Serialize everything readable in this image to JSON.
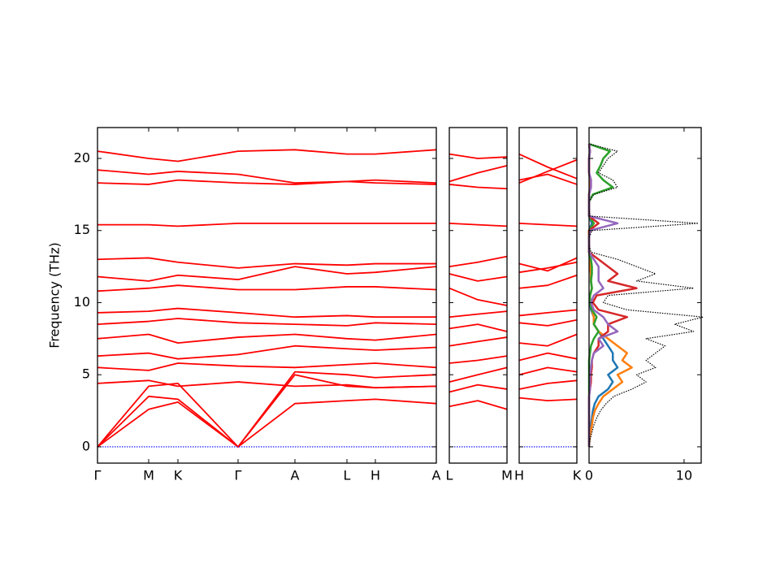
{
  "chart_data": [
    {
      "type": "line",
      "ylabel": "Frequency (THz)",
      "x": [
        0,
        63,
        99,
        173,
        243,
        307,
        342,
        417
      ],
      "xlim": [
        0,
        417
      ],
      "xticks": [
        {
          "value": 0,
          "label": "Γ"
        },
        {
          "value": 63,
          "label": "M"
        },
        {
          "value": 99,
          "label": "K"
        },
        {
          "value": 173,
          "label": "Γ"
        },
        {
          "value": 243,
          "label": "A"
        },
        {
          "value": 307,
          "label": "L"
        },
        {
          "value": 342,
          "label": "H"
        },
        {
          "value": 417,
          "label": "A"
        }
      ],
      "ylim": [
        -1.13,
        22.14
      ],
      "yticks": [
        0,
        5,
        10,
        15,
        20
      ],
      "series": [
        {
          "color": "#ff0000",
          "values": [
            0,
            2.6,
            3.1,
            0,
            3,
            3.2,
            3.3,
            3
          ]
        },
        {
          "color": "#ff0000",
          "values": [
            0,
            3.5,
            3.3,
            0,
            5,
            4.2,
            4.1,
            4.2
          ]
        },
        {
          "color": "#ff0000",
          "values": [
            0,
            4.2,
            4.4,
            0,
            5.2,
            5.0,
            4.8,
            5
          ]
        },
        {
          "color": "#ff0000",
          "values": [
            4.4,
            4.6,
            4.2,
            4.5,
            4.2,
            4.3,
            4.1,
            4.2
          ]
        },
        {
          "color": "#ff0000",
          "values": [
            5.5,
            5.3,
            5.8,
            5.6,
            5.5,
            5.7,
            5.8,
            5.5
          ]
        },
        {
          "color": "#ff0000",
          "values": [
            6.3,
            6.5,
            6.1,
            6.4,
            7,
            6.8,
            6.7,
            6.9
          ]
        },
        {
          "color": "#ff0000",
          "values": [
            7.5,
            7.8,
            7.2,
            7.6,
            7.8,
            7.5,
            7.4,
            7.8
          ]
        },
        {
          "color": "#ff0000",
          "values": [
            8.5,
            8.7,
            8.9,
            8.6,
            8.5,
            8.4,
            8.6,
            8.5
          ]
        },
        {
          "color": "#ff0000",
          "values": [
            9.3,
            9.4,
            9.6,
            9.3,
            9.0,
            9.1,
            9.0,
            9.0
          ]
        },
        {
          "color": "#ff0000",
          "values": [
            10.8,
            11.0,
            11.2,
            10.9,
            10.9,
            11.1,
            11.1,
            10.9
          ]
        },
        {
          "color": "#ff0000",
          "values": [
            11.8,
            11.5,
            11.9,
            11.6,
            12.5,
            12.0,
            12.1,
            12.5
          ]
        },
        {
          "color": "#ff0000",
          "values": [
            13.0,
            13.1,
            12.8,
            12.4,
            12.7,
            12.6,
            12.7,
            12.7
          ]
        },
        {
          "color": "#ff0000",
          "values": [
            15.4,
            15.4,
            15.3,
            15.5,
            15.5,
            15.5,
            15.5,
            15.5
          ]
        },
        {
          "color": "#ff0000",
          "values": [
            18.3,
            18.2,
            18.5,
            18.3,
            18.2,
            18.4,
            18.3,
            18.2
          ]
        },
        {
          "color": "#ff0000",
          "values": [
            19.2,
            18.9,
            19.1,
            18.9,
            18.3,
            18.4,
            18.5,
            18.3
          ]
        },
        {
          "color": "#ff0000",
          "values": [
            20.5,
            20.0,
            19.8,
            20.5,
            20.6,
            20.3,
            20.3,
            20.6
          ]
        },
        {
          "color": "#0000ff",
          "linestyle": "dotted",
          "values": [
            0,
            0,
            0,
            0,
            0,
            0,
            0,
            0
          ]
        }
      ]
    },
    {
      "type": "line",
      "x": [
        0,
        35,
        71
      ],
      "xlim": [
        0,
        71
      ],
      "xticks": [
        {
          "value": 0,
          "label": "L"
        },
        {
          "value": 71,
          "label": "M"
        }
      ],
      "ylim": [
        -1.13,
        22.14
      ],
      "yticks": [
        0,
        5,
        10,
        15,
        20
      ],
      "series": [
        {
          "color": "#ff0000",
          "values": [
            2.8,
            3.2,
            2.6
          ]
        },
        {
          "color": "#ff0000",
          "values": [
            3.8,
            4.3,
            4.0
          ]
        },
        {
          "color": "#ff0000",
          "values": [
            4.5,
            5.0,
            5.5
          ]
        },
        {
          "color": "#ff0000",
          "values": [
            5.8,
            6.0,
            6.3
          ]
        },
        {
          "color": "#ff0000",
          "values": [
            7.0,
            7.3,
            7.6
          ]
        },
        {
          "color": "#ff0000",
          "values": [
            8.2,
            8.5,
            8.0
          ]
        },
        {
          "color": "#ff0000",
          "values": [
            9.0,
            9.2,
            9.4
          ]
        },
        {
          "color": "#ff0000",
          "values": [
            11.0,
            10.2,
            9.8
          ]
        },
        {
          "color": "#ff0000",
          "values": [
            12.0,
            11.5,
            11.8
          ]
        },
        {
          "color": "#ff0000",
          "values": [
            12.5,
            12.8,
            13.2
          ]
        },
        {
          "color": "#ff0000",
          "values": [
            15.5,
            15.4,
            15.3
          ]
        },
        {
          "color": "#ff0000",
          "values": [
            18.2,
            18.0,
            17.9
          ]
        },
        {
          "color": "#ff0000",
          "values": [
            18.4,
            19.0,
            19.5
          ]
        },
        {
          "color": "#ff0000",
          "values": [
            20.3,
            20.0,
            20.1
          ]
        },
        {
          "color": "#0000ff",
          "linestyle": "dotted",
          "values": [
            0,
            0,
            0
          ]
        }
      ]
    },
    {
      "type": "line",
      "x": [
        0,
        35,
        71
      ],
      "xlim": [
        0,
        71
      ],
      "xticks": [
        {
          "value": 0,
          "label": "H"
        },
        {
          "value": 71,
          "label": "K"
        }
      ],
      "ylim": [
        -1.13,
        22.14
      ],
      "yticks": [
        0,
        5,
        10,
        15,
        20
      ],
      "series": [
        {
          "color": "#ff0000",
          "values": [
            3.4,
            3.2,
            3.3
          ]
        },
        {
          "color": "#ff0000",
          "values": [
            4.0,
            4.4,
            4.6
          ]
        },
        {
          "color": "#ff0000",
          "values": [
            5.0,
            5.5,
            5.2
          ]
        },
        {
          "color": "#ff0000",
          "values": [
            6.0,
            6.5,
            6.1
          ]
        },
        {
          "color": "#ff0000",
          "values": [
            7.2,
            7.0,
            7.8
          ]
        },
        {
          "color": "#ff0000",
          "values": [
            8.6,
            8.4,
            8.8
          ]
        },
        {
          "color": "#ff0000",
          "values": [
            9.1,
            9.3,
            9.5
          ]
        },
        {
          "color": "#ff0000",
          "values": [
            11.0,
            11.2,
            11.9
          ]
        },
        {
          "color": "#ff0000",
          "values": [
            12.1,
            12.4,
            12.8
          ]
        },
        {
          "color": "#ff0000",
          "values": [
            12.7,
            12.2,
            13.1
          ]
        },
        {
          "color": "#ff0000",
          "values": [
            15.5,
            15.4,
            15.3
          ]
        },
        {
          "color": "#ff0000",
          "values": [
            18.3,
            19.1,
            19.9
          ]
        },
        {
          "color": "#ff0000",
          "values": [
            18.5,
            18.9,
            18.2
          ]
        },
        {
          "color": "#ff0000",
          "values": [
            20.3,
            19.4,
            18.6
          ]
        },
        {
          "color": "#0000ff",
          "linestyle": "dotted",
          "values": [
            0,
            0,
            0
          ]
        }
      ]
    },
    {
      "type": "line",
      "orientation": "horizontal",
      "y": [
        0,
        0.5,
        1,
        1.5,
        2,
        2.5,
        3,
        3.5,
        4,
        4.5,
        5,
        5.5,
        6,
        6.5,
        7,
        7.5,
        8,
        8.5,
        9,
        9.5,
        10,
        10.5,
        11,
        11.5,
        12,
        12.5,
        13,
        13.5,
        14,
        14.5,
        15,
        15.5,
        16,
        16.5,
        17,
        17.5,
        18,
        18.5,
        19,
        19.5,
        20,
        20.5,
        21
      ],
      "xlim": [
        0,
        11.8
      ],
      "xticks": [
        0,
        10
      ],
      "ylim": [
        -1.13,
        22.14
      ],
      "yticks": [
        0,
        5,
        10,
        15,
        20
      ],
      "series": [
        {
          "color": "#1f77b4",
          "values": [
            0,
            0.05,
            0.1,
            0.2,
            0.3,
            0.4,
            0.6,
            1,
            2,
            2.5,
            2,
            3,
            2.5,
            2.5,
            2,
            1.5,
            1,
            0.5,
            0.5,
            0.2,
            0.1,
            0.1,
            0.3,
            0.2,
            0.2,
            0.1,
            0.1,
            0,
            0,
            0,
            0,
            0.3,
            0,
            0,
            0,
            0,
            0.1,
            0.1,
            0,
            0,
            0,
            0.1,
            0
          ]
        },
        {
          "color": "#ff7f0e",
          "values": [
            0,
            0.05,
            0.15,
            0.3,
            0.4,
            0.6,
            1,
            1.5,
            2.5,
            3.5,
            3,
            4.5,
            3.5,
            4,
            3,
            2,
            1,
            0.5,
            0.5,
            0.3,
            0.1,
            0.1,
            0.3,
            0.2,
            0.2,
            0.1,
            0.1,
            0,
            0,
            0,
            0,
            0.5,
            0,
            0,
            0,
            0,
            0.1,
            0.1,
            0,
            0,
            0,
            0.1,
            0
          ]
        },
        {
          "color": "#2ca02c",
          "values": [
            0,
            0,
            0,
            0,
            0,
            0,
            0,
            0,
            0,
            0,
            0,
            0,
            0,
            0.1,
            0.2,
            0.5,
            1,
            0.5,
            0.8,
            0.3,
            0.1,
            0.1,
            0.3,
            0.2,
            0.3,
            0.3,
            0.2,
            0,
            0,
            0,
            0,
            0.5,
            0,
            0,
            0,
            0.4,
            2.5,
            1.5,
            0.8,
            1.2,
            1.5,
            2.2,
            0
          ]
        },
        {
          "color": "#d62728",
          "values": [
            0,
            0,
            0,
            0,
            0,
            0,
            0,
            0,
            0.1,
            0.2,
            0.2,
            0.3,
            0.3,
            0.5,
            1,
            1,
            2,
            2,
            4,
            1,
            0.4,
            0.8,
            5,
            2,
            3,
            2,
            1,
            0,
            0,
            0,
            0,
            1,
            0,
            0,
            0,
            0,
            0.2,
            0.2,
            0,
            0,
            0,
            0.1,
            0
          ]
        },
        {
          "color": "#9467bd",
          "values": [
            0,
            0,
            0,
            0,
            0,
            0,
            0,
            0,
            0.1,
            0.1,
            0.1,
            0.2,
            0.3,
            0.5,
            1.5,
            1,
            3,
            2,
            1.5,
            0.5,
            0.2,
            0.5,
            1.5,
            1,
            1,
            1,
            0.5,
            0,
            0,
            0,
            0.1,
            3,
            0,
            0,
            0,
            0,
            0.2,
            0.2,
            0,
            0,
            0,
            0.1,
            0
          ]
        },
        {
          "color": "#000000",
          "linestyle": "dotted",
          "values": [
            0,
            0.1,
            0.3,
            0.5,
            0.8,
            1.2,
            1.8,
            2.6,
            4.5,
            6,
            5,
            7,
            6,
            7,
            8,
            6,
            11,
            9,
            12,
            4,
            1.5,
            2,
            11,
            5,
            7,
            5,
            3,
            0.2,
            0,
            0,
            0.3,
            11.5,
            0.1,
            0,
            0,
            0.5,
            3,
            2.5,
            1,
            1.5,
            2,
            3,
            0
          ]
        }
      ]
    }
  ]
}
